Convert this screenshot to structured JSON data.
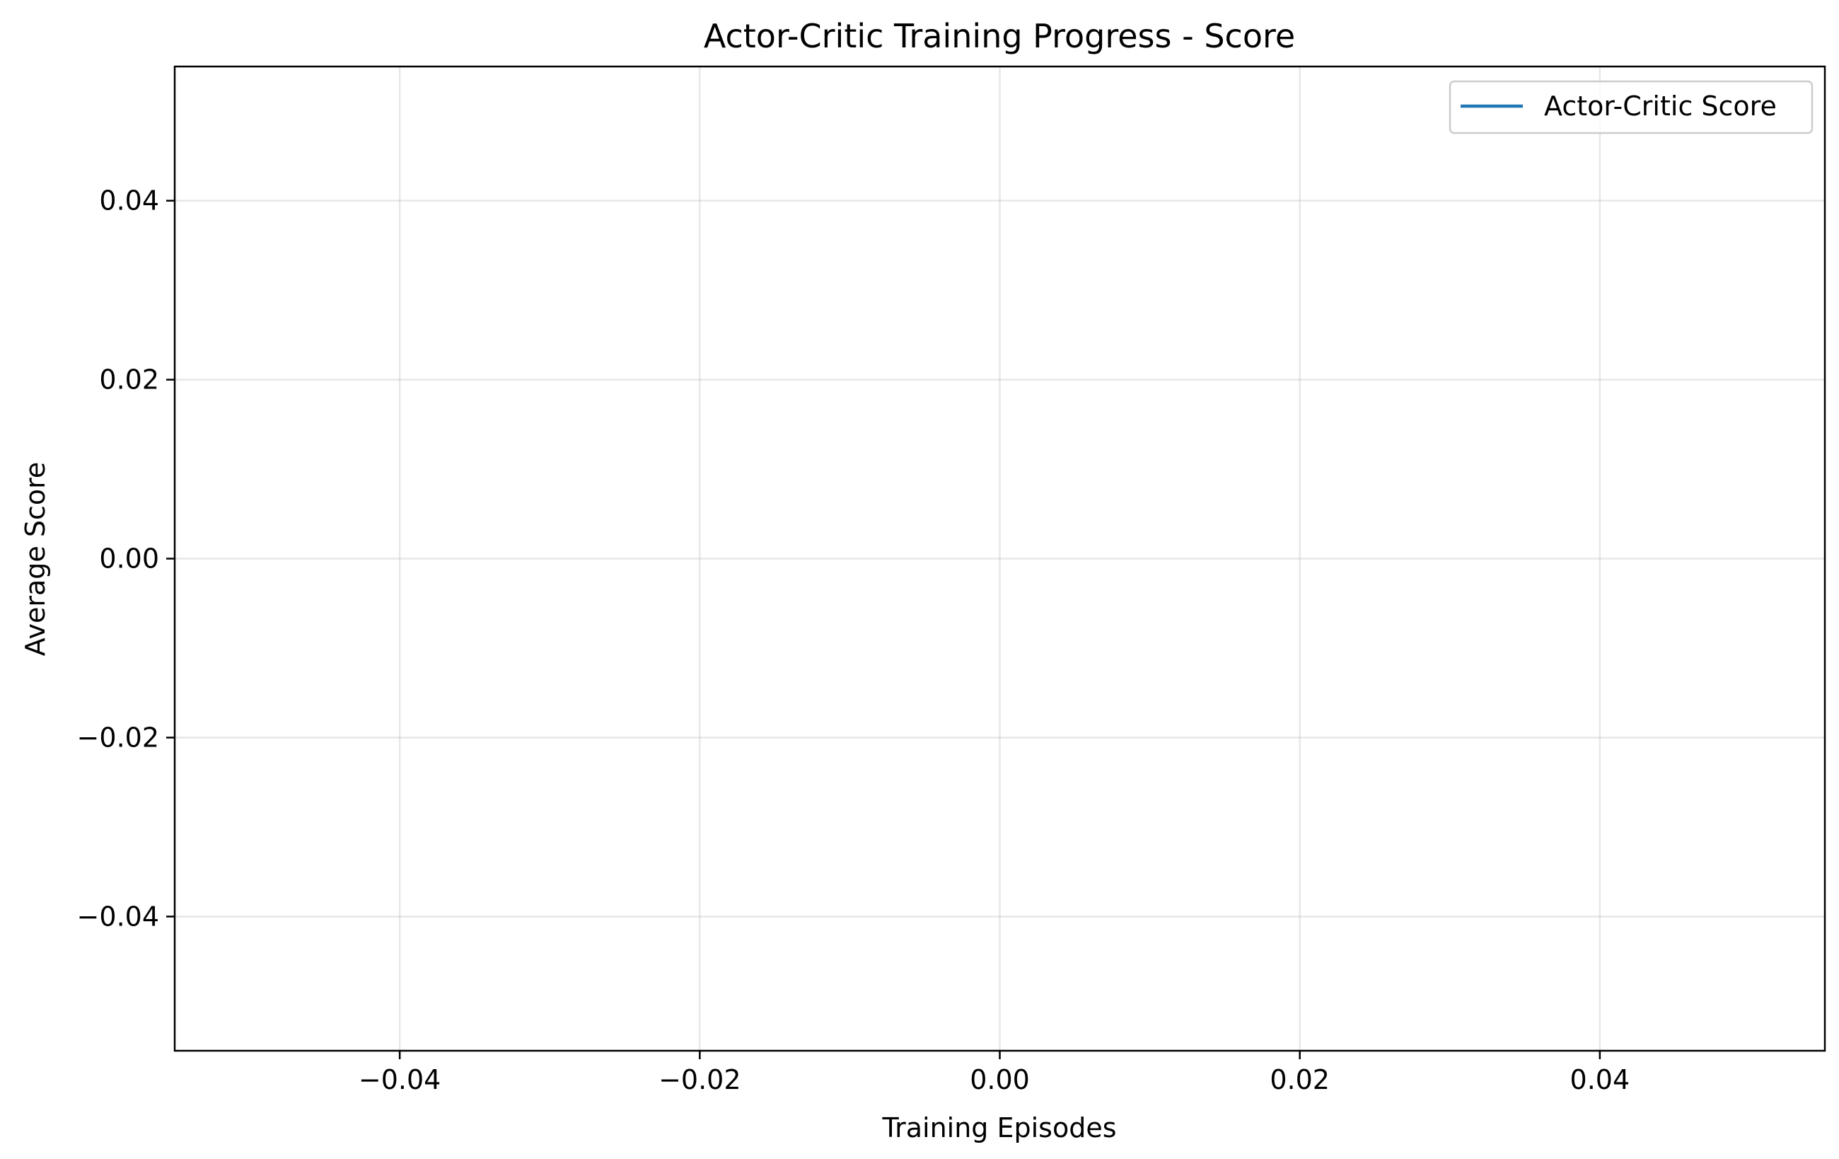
{
  "chart_data": {
    "type": "line",
    "title": "Actor-Critic Training Progress - Score",
    "xlabel": "Training Episodes",
    "ylabel": "Average Score",
    "xlim": [
      -0.055,
      0.055
    ],
    "ylim": [
      -0.055,
      0.055
    ],
    "xticks": [
      -0.04,
      -0.02,
      0.0,
      0.02,
      0.04
    ],
    "xtick_labels": [
      "−0.04",
      "−0.02",
      "0.00",
      "0.02",
      "0.04"
    ],
    "yticks": [
      -0.04,
      -0.02,
      0.0,
      0.02,
      0.04
    ],
    "ytick_labels": [
      "−0.04",
      "−0.02",
      "0.00",
      "0.02",
      "0.04"
    ],
    "grid": true,
    "legend_position": "top-right",
    "series": [
      {
        "name": "Actor-Critic Score",
        "color": "#1f77b4",
        "x": [],
        "y": []
      }
    ]
  }
}
